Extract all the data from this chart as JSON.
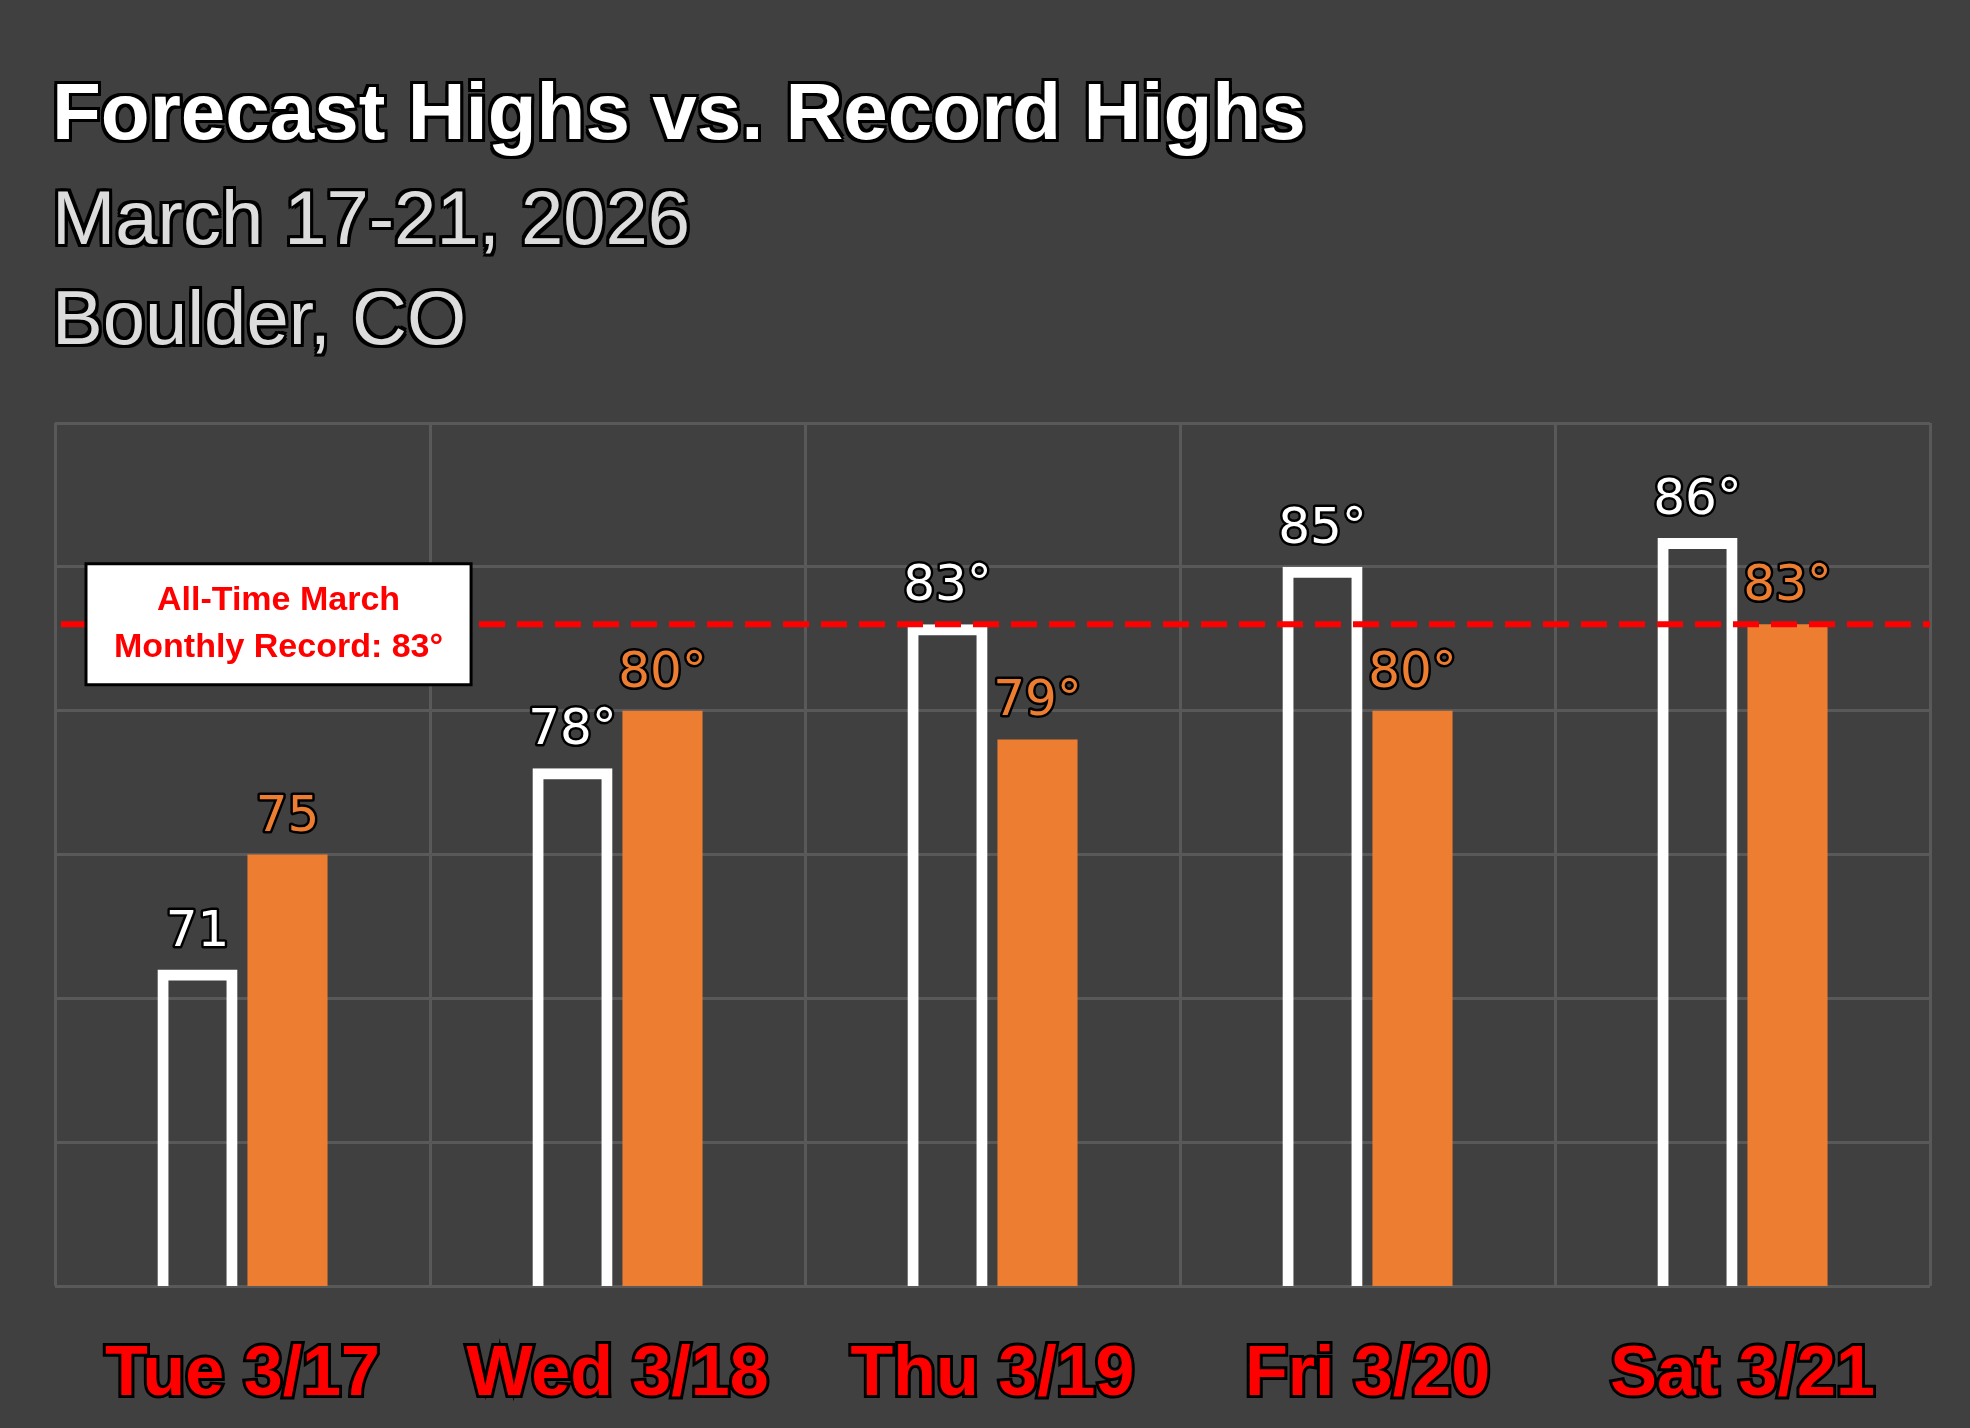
{
  "chart_data": {
    "type": "bar",
    "title": "Forecast Highs vs. Record Highs",
    "subtitle": "March 17-21, 2026\nBoulder, CO",
    "categories": [
      "Tue 3/17",
      "Wed 3/18",
      "Thu 3/19",
      "Fri 3/20",
      "Sat 3/21"
    ],
    "series": [
      {
        "color": "#ffffff",
        "values": [
          71,
          78,
          83,
          85,
          86
        ],
        "value_labels": [
          "71",
          "78°",
          "83°",
          "85°",
          "86°"
        ]
      },
      {
        "color": "#ed7d31",
        "values": [
          75,
          80,
          79,
          80,
          83
        ],
        "value_labels": [
          "75",
          "80°",
          "79°",
          "80°",
          "83°"
        ]
      }
    ],
    "ylim": [
      60,
      90
    ],
    "yticks": [
      {
        "value": 60,
        "label": null
      },
      {
        "value": 65,
        "label": null
      },
      {
        "value": 70,
        "label": null
      },
      {
        "value": 75,
        "label": null
      },
      {
        "value": 80,
        "label": null
      },
      {
        "value": 85,
        "label": null
      },
      {
        "value": 90,
        "label": null
      }
    ],
    "tick_labels": "x",
    "grid": true,
    "ref_lines": [
      {
        "axis": "y",
        "value": 83,
        "label": "All-Time March Monthly Record: 83°",
        "color": "#ff0000",
        "line_style": "dashed"
      }
    ]
  }
}
